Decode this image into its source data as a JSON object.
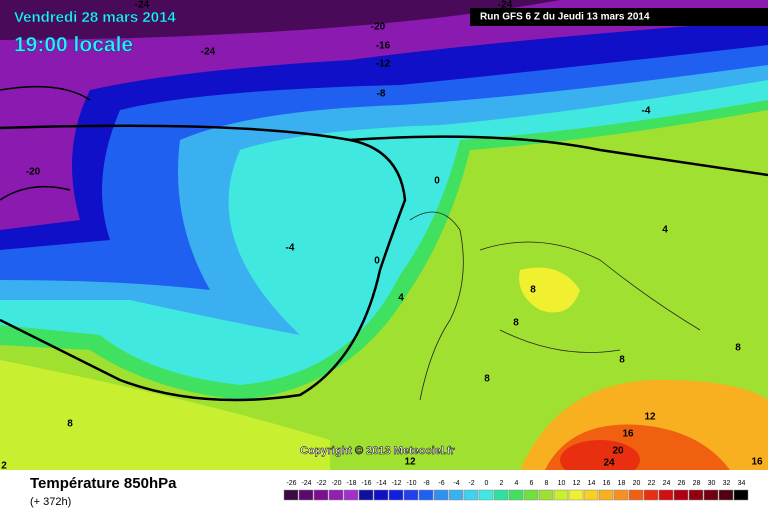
{
  "header": {
    "date": "Vendredi 28 mars 2014",
    "time": "19:00 locale",
    "run": "Run GFS 6 Z du Jeudi 13 mars 2014"
  },
  "copyright": "Copyright © 2013 Meteociel.fr",
  "footer": {
    "title": "Température 850hPa",
    "subtitle": "(+ 372h)"
  },
  "contour_labels": [
    "-24",
    "-20",
    "-24",
    "-16",
    "-12",
    "-8",
    "-20",
    "-24",
    "-4",
    "-4",
    "0",
    "0",
    "4",
    "4",
    "8",
    "8",
    "8",
    "8",
    "8",
    "8",
    "12",
    "12",
    "16",
    "16",
    "20",
    "24",
    "2"
  ],
  "colorbar": {
    "labels": [
      "-26",
      "-24",
      "-22",
      "-20",
      "-18",
      "-16",
      "-14",
      "-12",
      "-10",
      "-8",
      "-6",
      "-4",
      "-2",
      "0",
      "2",
      "4",
      "6",
      "8",
      "10",
      "12",
      "14",
      "16",
      "18",
      "20",
      "22",
      "24",
      "26",
      "28",
      "30",
      "32",
      "34"
    ],
    "colors": [
      "#3a0a40",
      "#5a0a6e",
      "#7a1090",
      "#9020b0",
      "#a030c8",
      "#1010a0",
      "#1010c8",
      "#1020e0",
      "#2040f0",
      "#2060f0",
      "#3090f0",
      "#3ab0f0",
      "#40d0f0",
      "#40e8e0",
      "#30e0a0",
      "#40e060",
      "#70e040",
      "#a0e030",
      "#c8f030",
      "#f0f030",
      "#f8d020",
      "#f8b020",
      "#f89020",
      "#f06010",
      "#e83010",
      "#d01010",
      "#b00010",
      "#900010",
      "#700010",
      "#500010",
      "#000000"
    ]
  }
}
